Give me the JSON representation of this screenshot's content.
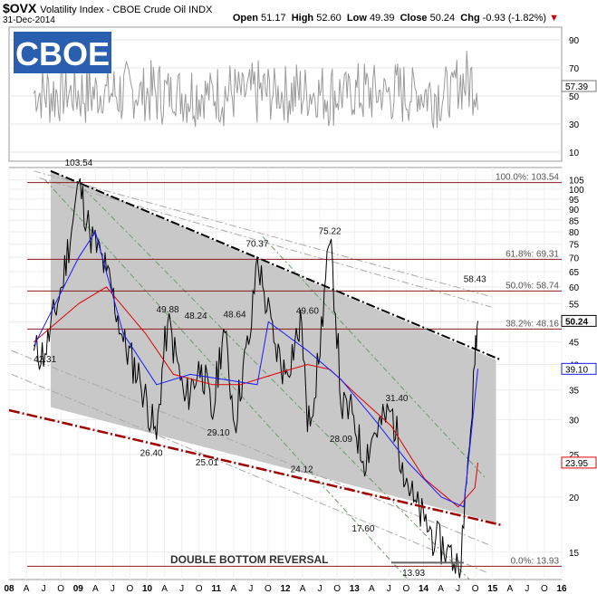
{
  "header": {
    "symbol": "$OVX",
    "name": "Volatility Index - CBOE Crude Oil INDX",
    "date": "31-Dec-2014",
    "open_label": "Open",
    "open": "51.17",
    "high_label": "High",
    "high": "52.60",
    "low_label": "Low",
    "low": "49.39",
    "close_label": "Close",
    "close": "50.24",
    "chg_label": "Chg",
    "chg": "-0.93 (-1.82%)"
  },
  "logo_text": "CBOE",
  "colors": {
    "price": "#000000",
    "ma_fast": "#1a1aff",
    "ma_slow": "#e00000",
    "channel": "#c8c8c8",
    "fib": "#8b1a1a",
    "upper_pane": "#9a9a9a",
    "resistance": "#000000",
    "support": "#a00000",
    "guide_green": "#6a9a6a"
  },
  "upper_pane": {
    "ticks": [
      "90",
      "70",
      "50",
      "30",
      "10"
    ],
    "last_value": "57.39"
  },
  "chart_data": {
    "type": "line",
    "title": "$OVX Volatility Index - CBOE Crude Oil INDX",
    "y_scale": "log",
    "ylim": [
      13,
      112
    ],
    "y_ticks": [
      "105",
      "100",
      "95",
      "90",
      "85",
      "80",
      "75",
      "70",
      "65",
      "60",
      "55",
      "50",
      "45",
      "40",
      "35",
      "30",
      "25",
      "20",
      "15"
    ],
    "x_ticks": [
      "08",
      "A",
      "J",
      "O",
      "09",
      "A",
      "J",
      "O",
      "10",
      "A",
      "J",
      "O",
      "11",
      "A",
      "J",
      "O",
      "12",
      "A",
      "J",
      "O",
      "13",
      "A",
      "J",
      "O",
      "14",
      "A",
      "J",
      "O",
      "15",
      "A",
      "J",
      "O",
      "16"
    ],
    "series": [
      {
        "x": [
          "2008-05",
          "2008-07",
          "2008-10",
          "2008-12",
          "2009-01",
          "2009-03",
          "2009-06",
          "2009-09",
          "2009-12",
          "2010-03",
          "2010-05",
          "2010-08",
          "2010-11",
          "2011-01",
          "2011-03",
          "2011-05",
          "2011-08",
          "2011-09",
          "2011-10",
          "2011-12",
          "2012-02",
          "2012-05",
          "2012-06",
          "2012-08",
          "2012-10",
          "2012-12",
          "2013-02",
          "2013-04",
          "2013-06",
          "2013-09",
          "2013-11",
          "2014-01",
          "2014-03",
          "2014-05",
          "2014-07",
          "2014-09",
          "2014-10",
          "2014-11",
          "2014-12",
          "2014-12-31"
        ],
        "y": [
          43,
          42.31,
          60,
          85,
          103.54,
          80,
          65,
          45,
          37,
          27,
          49.88,
          33,
          40,
          30,
          48.24,
          29.1,
          48.64,
          70.37,
          60,
          45,
          38,
          49.6,
          28.09,
          40,
          75.22,
          32,
          31,
          24.12,
          28,
          31.4,
          24,
          19.5,
          17.6,
          16,
          15.2,
          13.93,
          17,
          26,
          40,
          50.24
        ]
      },
      {
        "name": "",
        "x": [
          "2008-05",
          "2009-01",
          "2009-04",
          "2009-09",
          "2010-03",
          "2010-09",
          "2011-03",
          "2011-09",
          "2011-11",
          "2012-06",
          "2012-12",
          "2013-06",
          "2013-12",
          "2014-06",
          "2014-10",
          "2014-12-31"
        ],
        "y": [
          44,
          70,
          80,
          47,
          36,
          38,
          37,
          36,
          50,
          43,
          37,
          30,
          24,
          20,
          19,
          39.1
        ]
      },
      {
        "name": "",
        "x": [
          "2008-05",
          "2009-01",
          "2009-06",
          "2010-01",
          "2010-06",
          "2011-01",
          "2011-06",
          "2011-12",
          "2012-06",
          "2012-10",
          "2013-03",
          "2013-09",
          "2014-03",
          "2014-09",
          "2014-12",
          "2014-12-31"
        ],
        "y": [
          45,
          55,
          60,
          47,
          38,
          36,
          36,
          38,
          40,
          39,
          34,
          29,
          22,
          19,
          21,
          23.95
        ]
      }
    ],
    "annotations": {
      "points": [
        "103.54",
        "42.31",
        "49.88",
        "48.24",
        "48.64",
        "70.37",
        "49.60",
        "75.22",
        "26.40",
        "25.01",
        "29.10",
        "24.12",
        "28.09",
        "31.40",
        "17.60",
        "13.93",
        "58.43"
      ],
      "fib_levels": [
        {
          "label": "100.0%: 103.54",
          "value": 103.54
        },
        {
          "label": "61.8%: 69.31",
          "value": 69.31
        },
        {
          "label": "50.0%: 58.74",
          "value": 58.74
        },
        {
          "label": "38.2%: 48.16",
          "value": 48.16
        },
        {
          "label": "0.0%: 13.93",
          "value": 13.93
        }
      ],
      "right_labels": [
        "50.24",
        "39.10",
        "23.95"
      ],
      "pattern_label": "DOUBLE BOTTOM REVERSAL"
    }
  }
}
